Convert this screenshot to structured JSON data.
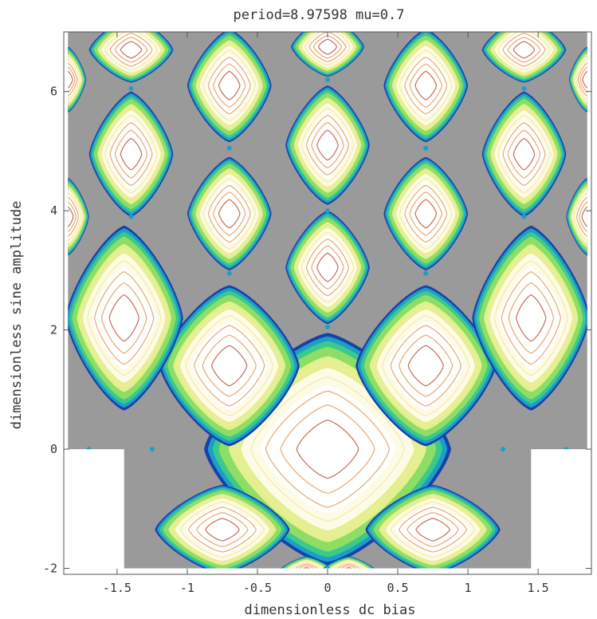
{
  "chart_data": {
    "type": "contour",
    "title": "period=8.97598 mu=0.7",
    "xlabel": "dimensionless dc bias",
    "ylabel": "dimensionless sine amplitude",
    "xlim": [
      -1.88,
      1.88
    ],
    "ylim": [
      -2.1,
      7.0
    ],
    "x_ticks": [
      {
        "value": -1.5,
        "label": "-1.5"
      },
      {
        "value": -1,
        "label": "-1"
      },
      {
        "value": -0.5,
        "label": "-0.5"
      },
      {
        "value": 0,
        "label": "0"
      },
      {
        "value": 0.5,
        "label": "0.5"
      },
      {
        "value": 1,
        "label": "1"
      },
      {
        "value": 1.5,
        "label": "1.5"
      }
    ],
    "y_ticks": [
      {
        "value": -2,
        "label": "-2"
      },
      {
        "value": 0,
        "label": "0"
      },
      {
        "value": 2,
        "label": "2"
      },
      {
        "value": 4,
        "label": "4"
      },
      {
        "value": 6,
        "label": "6"
      }
    ],
    "data_region": {
      "upper": {
        "x": [
          -1.85,
          1.85
        ],
        "y": [
          0,
          7.0
        ]
      },
      "lower": {
        "x": [
          -1.45,
          1.45
        ],
        "y": [
          -2.0,
          0
        ]
      }
    },
    "background_color": "#9a9a9a",
    "contour_colors": [
      "#1a3fa8",
      "#1aa0c8",
      "#3ec88a",
      "#8ede66",
      "#e2f08e",
      "#f6e9a6",
      "#e8a870",
      "#c86a58",
      "#b05a58"
    ],
    "grid": false,
    "legend": "none",
    "regions": [
      {
        "cx": 0.0,
        "cy": 0.0,
        "rx": 0.88,
        "ry": 1.95
      },
      {
        "cx": -0.7,
        "cy": 1.4,
        "rx": 0.5,
        "ry": 1.35
      },
      {
        "cx": 0.7,
        "cy": 1.4,
        "rx": 0.5,
        "ry": 1.35
      },
      {
        "cx": -1.45,
        "cy": 2.2,
        "rx": 0.42,
        "ry": 1.55
      },
      {
        "cx": 1.45,
        "cy": 2.2,
        "rx": 0.42,
        "ry": 1.55
      },
      {
        "cx": -0.75,
        "cy": -1.35,
        "rx": 0.48,
        "ry": 0.75
      },
      {
        "cx": 0.75,
        "cy": -1.35,
        "rx": 0.48,
        "ry": 0.75
      },
      {
        "cx": 0.0,
        "cy": 3.05,
        "rx": 0.3,
        "ry": 0.95
      },
      {
        "cx": -0.7,
        "cy": 3.95,
        "rx": 0.3,
        "ry": 0.95
      },
      {
        "cx": 0.7,
        "cy": 3.95,
        "rx": 0.3,
        "ry": 0.95
      },
      {
        "cx": 0.0,
        "cy": 5.1,
        "rx": 0.3,
        "ry": 1.0
      },
      {
        "cx": -1.4,
        "cy": 4.95,
        "rx": 0.3,
        "ry": 1.05
      },
      {
        "cx": 1.4,
        "cy": 4.95,
        "rx": 0.3,
        "ry": 1.05
      },
      {
        "cx": -0.7,
        "cy": 6.1,
        "rx": 0.3,
        "ry": 0.95
      },
      {
        "cx": 0.7,
        "cy": 6.1,
        "rx": 0.3,
        "ry": 0.95
      },
      {
        "cx": -1.4,
        "cy": 6.7,
        "rx": 0.3,
        "ry": 0.55
      },
      {
        "cx": 0.0,
        "cy": 6.75,
        "rx": 0.26,
        "ry": 0.5
      },
      {
        "cx": 1.4,
        "cy": 6.7,
        "rx": 0.3,
        "ry": 0.55
      },
      {
        "cx": -1.85,
        "cy": 3.9,
        "rx": 0.15,
        "ry": 0.65
      },
      {
        "cx": 1.85,
        "cy": 3.9,
        "rx": 0.15,
        "ry": 0.65
      },
      {
        "cx": -1.85,
        "cy": 6.2,
        "rx": 0.13,
        "ry": 0.55
      },
      {
        "cx": 1.85,
        "cy": 6.2,
        "rx": 0.13,
        "ry": 0.55
      },
      {
        "cx": -0.15,
        "cy": -2.05,
        "rx": 0.2,
        "ry": 0.25
      },
      {
        "cx": 0.15,
        "cy": -2.05,
        "rx": 0.2,
        "ry": 0.25
      }
    ],
    "separatrix_nodes": [
      [
        -1.7,
        0.0
      ],
      [
        1.7,
        0.0
      ],
      [
        -1.25,
        0.0
      ],
      [
        1.25,
        0.0
      ],
      [
        -0.7,
        2.95
      ],
      [
        0.7,
        2.95
      ],
      [
        0.0,
        2.05
      ],
      [
        0.0,
        4.0
      ],
      [
        -1.4,
        3.9
      ],
      [
        1.4,
        3.9
      ],
      [
        -0.7,
        5.05
      ],
      [
        0.7,
        5.05
      ],
      [
        -1.4,
        6.05
      ],
      [
        1.4,
        6.05
      ],
      [
        0.0,
        6.2
      ],
      [
        0.0,
        -2.0
      ]
    ]
  }
}
